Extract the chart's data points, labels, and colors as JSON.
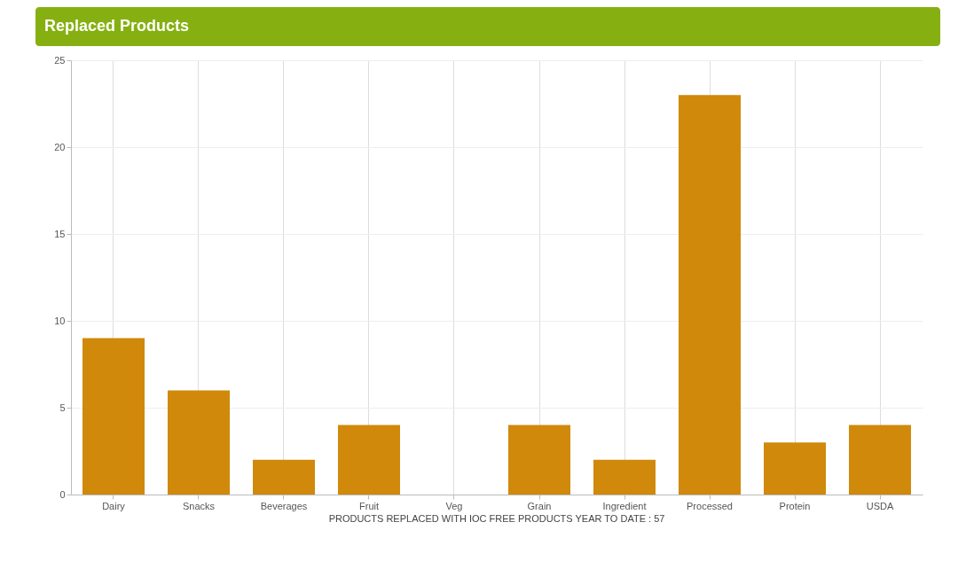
{
  "chart_data": {
    "type": "bar",
    "title": "Replaced Products",
    "categories": [
      "Dairy",
      "Snacks",
      "Beverages",
      "Fruit",
      "Veg",
      "Grain",
      "Ingredient",
      "Processed",
      "Protein",
      "USDA"
    ],
    "series": [
      {
        "color": "#d0890b",
        "values": [
          9,
          6,
          2,
          4,
          0,
          4,
          2,
          23,
          3,
          4
        ]
      }
    ],
    "ylim": [
      0,
      25
    ],
    "yticks": [
      0,
      5,
      10,
      15,
      20,
      25
    ],
    "grid": true,
    "annotations": [
      "PRODUCTS REPLACED WITH IOC FREE PRODUCTS YEAR TO DATE : 57"
    ]
  }
}
